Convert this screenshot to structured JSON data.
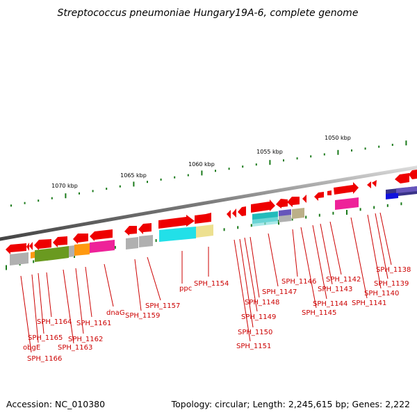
{
  "title": "Streptococcus pneumoniae Hungary19A-6, complete genome",
  "footer": {
    "accession": "Accession: NC_010380",
    "topology": "Topology: circular; Length: 2,245,615 bp; Genes: 2,222"
  },
  "ticks": [
    "1050 kbp",
    "1055 kbp",
    "1060 kbp",
    "1065 kbp",
    "1070 kbp"
  ],
  "gene_labels": [
    "SPH_1138",
    "SPH_1139",
    "SPH_1140",
    "SPH_1141",
    "SPH_1142",
    "SPH_1143",
    "SPH_1144",
    "SPH_1145",
    "SPH_1146",
    "SPH_1147",
    "SPH_1148",
    "SPH_1149",
    "SPH_1150",
    "SPH_1151",
    "SPH_1154",
    "ppc",
    "SPH_1157",
    "SPH_1159",
    "dnaG",
    "SPH_1161",
    "SPH_1162",
    "SPH_1163",
    "SPH_1164",
    "SPH_1165",
    "obgE",
    "SPH_1166"
  ],
  "colors": {
    "backbone": "#7a7a7a",
    "gene_forward": "#ee0000",
    "tick": "#1a7a1a",
    "label": "#cc0000",
    "cyan": "#22e0e8",
    "magenta": "#ee2299",
    "olive": "#6a9a20",
    "orange": "#ff9910",
    "khaki": "#ede090",
    "gray": "#b0b0b0",
    "purple": "#6655bb",
    "navy": "#3a3388",
    "blue": "#1111dd",
    "teal": "#22bbbb",
    "tan": "#bbb088"
  }
}
